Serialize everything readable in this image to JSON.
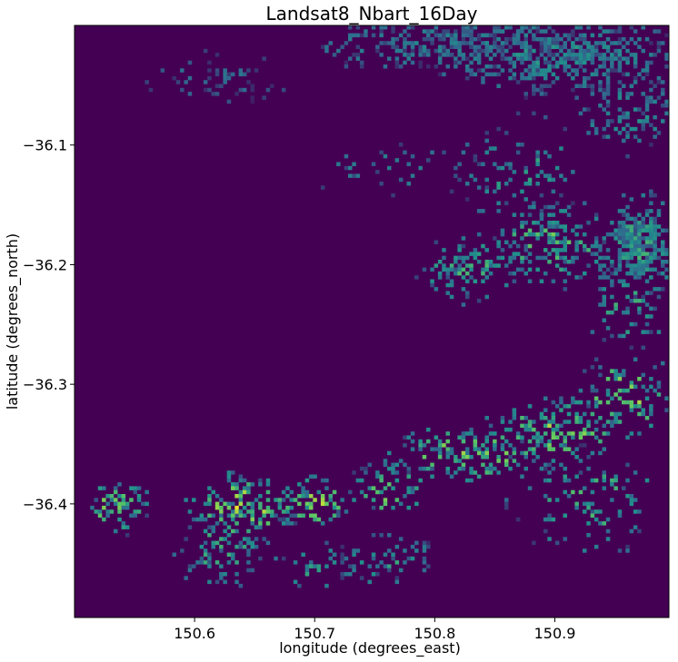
{
  "chart_data": {
    "type": "heatmap",
    "title": "Landsat8_Nbart_16Day",
    "xlabel": "longitude (degrees_east)",
    "ylabel": "latitude (degrees_north)",
    "xlim": [
      150.5,
      150.995
    ],
    "ylim": [
      -36.0,
      -36.495
    ],
    "x_ticks": [
      150.6,
      150.7,
      150.8,
      150.9
    ],
    "x_tick_labels": [
      "150.6",
      "150.7",
      "150.8",
      "150.9"
    ],
    "y_ticks": [
      -36.4,
      -36.3,
      -36.2,
      -36.1
    ],
    "y_tick_labels": [
      "−36.4",
      "−36.3",
      "−36.2",
      "−36.1"
    ],
    "colormap": "viridis",
    "colors": {
      "low": "#440154",
      "mid_low": "#31688e",
      "mid": "#21918c",
      "mid_high": "#5ec962",
      "high": "#fde725"
    },
    "background_value": 0,
    "grid": false,
    "value_range": [
      0,
      1
    ],
    "clusters": [
      {
        "lon": 150.62,
        "lat": -36.44,
        "r_lon": 0.04,
        "r_lat": 0.03,
        "density": 0.35,
        "intensity": 0.55
      },
      {
        "lon": 150.7,
        "lat": -36.455,
        "r_lon": 0.03,
        "r_lat": 0.02,
        "density": 0.3,
        "intensity": 0.5
      },
      {
        "lon": 150.76,
        "lat": -36.45,
        "r_lon": 0.04,
        "r_lat": 0.02,
        "density": 0.3,
        "intensity": 0.5
      },
      {
        "lon": 150.535,
        "lat": -36.405,
        "r_lon": 0.025,
        "r_lat": 0.02,
        "density": 0.5,
        "intensity": 0.75
      },
      {
        "lon": 150.64,
        "lat": -36.405,
        "r_lon": 0.04,
        "r_lat": 0.025,
        "density": 0.55,
        "intensity": 0.8
      },
      {
        "lon": 150.7,
        "lat": -36.4,
        "r_lon": 0.03,
        "r_lat": 0.02,
        "density": 0.5,
        "intensity": 0.75
      },
      {
        "lon": 150.76,
        "lat": -36.39,
        "r_lon": 0.03,
        "r_lat": 0.02,
        "density": 0.45,
        "intensity": 0.7
      },
      {
        "lon": 150.83,
        "lat": -36.36,
        "r_lon": 0.06,
        "r_lat": 0.02,
        "density": 0.55,
        "intensity": 0.75
      },
      {
        "lon": 150.9,
        "lat": -36.34,
        "r_lon": 0.05,
        "r_lat": 0.025,
        "density": 0.45,
        "intensity": 0.75
      },
      {
        "lon": 150.96,
        "lat": -36.31,
        "r_lon": 0.04,
        "r_lat": 0.03,
        "density": 0.4,
        "intensity": 0.75
      },
      {
        "lon": 150.93,
        "lat": -36.4,
        "r_lon": 0.06,
        "r_lat": 0.04,
        "density": 0.2,
        "intensity": 0.6
      },
      {
        "lon": 150.96,
        "lat": -36.24,
        "r_lon": 0.03,
        "r_lat": 0.03,
        "density": 0.3,
        "intensity": 0.6
      },
      {
        "lon": 150.83,
        "lat": -36.205,
        "r_lon": 0.04,
        "r_lat": 0.025,
        "density": 0.45,
        "intensity": 0.6
      },
      {
        "lon": 150.9,
        "lat": -36.18,
        "r_lon": 0.05,
        "r_lat": 0.035,
        "density": 0.45,
        "intensity": 0.65
      },
      {
        "lon": 150.97,
        "lat": -36.185,
        "r_lon": 0.03,
        "r_lat": 0.04,
        "density": 0.9,
        "intensity": 0.55
      },
      {
        "lon": 150.87,
        "lat": -36.12,
        "r_lon": 0.05,
        "r_lat": 0.04,
        "density": 0.25,
        "intensity": 0.5
      },
      {
        "lon": 150.76,
        "lat": -36.12,
        "r_lon": 0.06,
        "r_lat": 0.02,
        "density": 0.15,
        "intensity": 0.4
      },
      {
        "lon": 150.62,
        "lat": -36.045,
        "r_lon": 0.05,
        "r_lat": 0.02,
        "density": 0.3,
        "intensity": 0.3
      },
      {
        "lon": 150.9,
        "lat": -36.025,
        "r_lon": 0.1,
        "r_lat": 0.03,
        "density": 0.7,
        "intensity": 0.45
      },
      {
        "lon": 150.8,
        "lat": -36.015,
        "r_lon": 0.1,
        "r_lat": 0.02,
        "density": 0.6,
        "intensity": 0.4
      },
      {
        "lon": 150.96,
        "lat": -36.075,
        "r_lon": 0.04,
        "r_lat": 0.03,
        "density": 0.45,
        "intensity": 0.45
      }
    ]
  }
}
